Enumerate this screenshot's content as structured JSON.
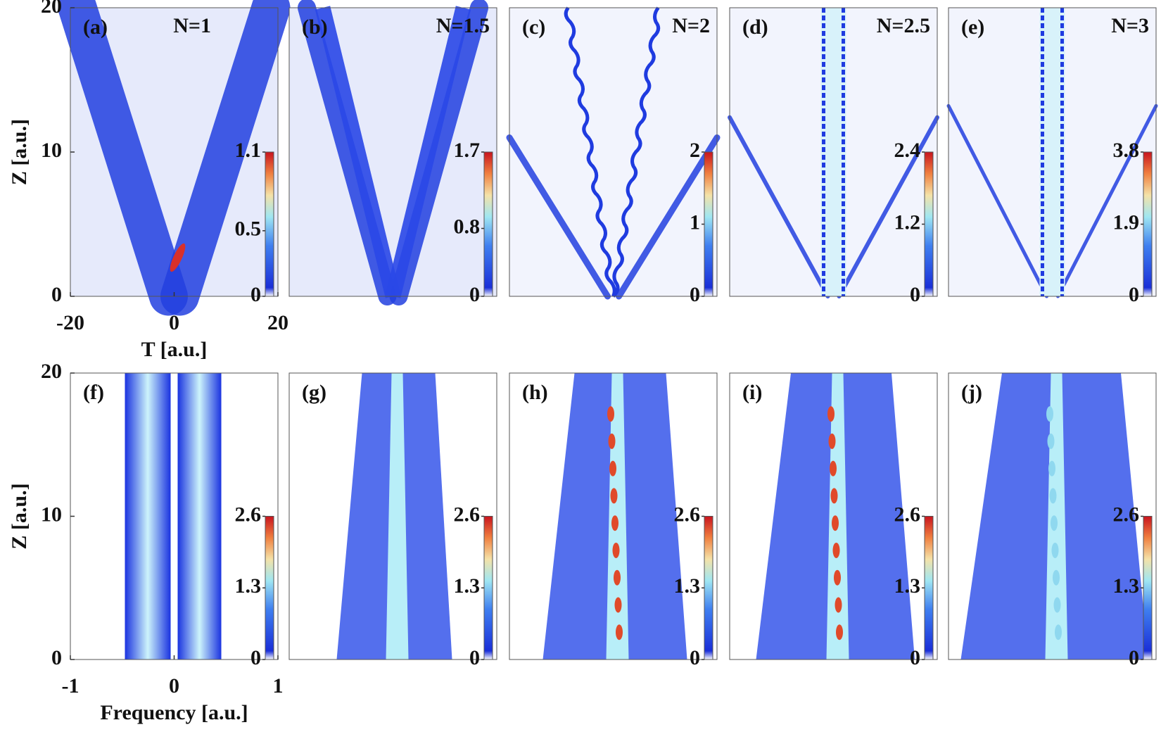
{
  "chart_data": [
    {
      "type": "heatmap",
      "label": "(a)",
      "title": "N=1",
      "ylabel": "Z [a.u.]",
      "xlabel": "T [a.u.]",
      "xlim": [
        -20,
        20
      ],
      "xticks": [
        -20,
        0,
        20
      ],
      "ylim": [
        0,
        20
      ],
      "yticks": [
        0,
        10,
        20
      ],
      "colorbar": {
        "lim": [
          0,
          1.1
        ],
        "ticks": [
          0,
          0.5,
          1.1
        ]
      }
    },
    {
      "type": "heatmap",
      "label": "(b)",
      "title": "N=1.5",
      "colorbar": {
        "lim": [
          0,
          1.7
        ],
        "ticks": [
          0,
          0.8,
          1.7
        ]
      }
    },
    {
      "type": "heatmap",
      "label": "(c)",
      "title": "N=2",
      "colorbar": {
        "lim": [
          0,
          2
        ],
        "ticks": [
          0,
          1,
          2
        ]
      }
    },
    {
      "type": "heatmap",
      "label": "(d)",
      "title": "N=2.5",
      "colorbar": {
        "lim": [
          0,
          2.4
        ],
        "ticks": [
          0,
          1.2,
          2.4
        ]
      }
    },
    {
      "type": "heatmap",
      "label": "(e)",
      "title": "N=3",
      "colorbar": {
        "lim": [
          0,
          3.8
        ],
        "ticks": [
          0,
          1.9,
          3.8
        ]
      }
    },
    {
      "type": "heatmap",
      "label": "(f)",
      "ylabel": "Z [a.u.]",
      "xlabel": "Frequency [a.u.]",
      "xlim": [
        -1,
        1
      ],
      "xticks": [
        -1,
        0,
        1
      ],
      "ylim": [
        0,
        20
      ],
      "yticks": [
        0,
        10,
        20
      ],
      "colorbar": {
        "lim": [
          0,
          2.6
        ],
        "ticks": [
          0,
          1.3,
          2.6
        ]
      }
    },
    {
      "type": "heatmap",
      "label": "(g)",
      "colorbar": {
        "lim": [
          0,
          2.6
        ],
        "ticks": [
          0,
          1.3,
          2.6
        ]
      }
    },
    {
      "type": "heatmap",
      "label": "(h)",
      "colorbar": {
        "lim": [
          0,
          2.6
        ],
        "ticks": [
          0,
          1.3,
          2.6
        ]
      }
    },
    {
      "type": "heatmap",
      "label": "(i)",
      "colorbar": {
        "lim": [
          0,
          2.6
        ],
        "ticks": [
          0,
          1.3,
          2.6
        ]
      }
    },
    {
      "type": "heatmap",
      "label": "(j)",
      "colorbar": {
        "lim": [
          0,
          2.6
        ],
        "ticks": [
          0,
          1.3,
          2.6
        ]
      }
    }
  ]
}
